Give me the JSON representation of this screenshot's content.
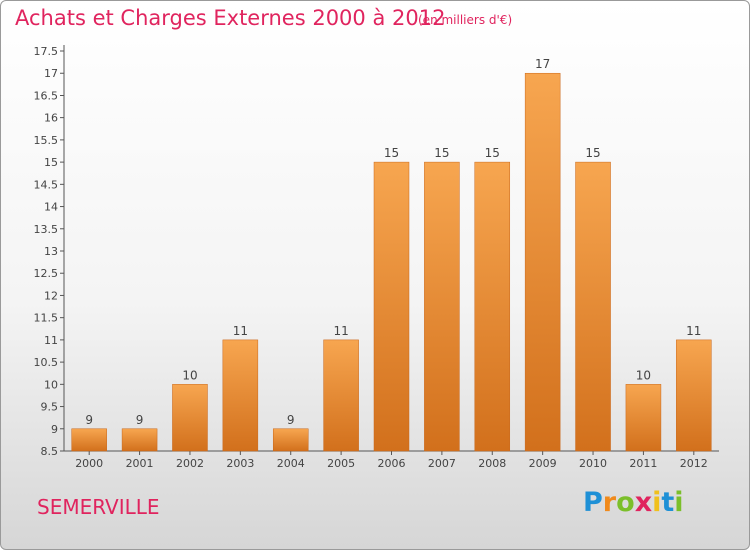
{
  "header": {
    "title": "Achats et Charges Externes 2000 à 2012",
    "subtitle": "(en milliers d'€)"
  },
  "footer": {
    "place": "SEMERVILLE",
    "brand": [
      "P",
      "r",
      "o",
      "x",
      "i",
      "t",
      "i"
    ],
    "brand_colors": [
      "#1e90d6",
      "#f08a1c",
      "#7bbf2a",
      "#e0245e",
      "#f0c01c",
      "#1e90d6",
      "#7bbf2a"
    ]
  },
  "chart_data": {
    "type": "bar",
    "title": "Achats et Charges Externes 2000 à 2012",
    "subtitle": "(en milliers d'€)",
    "categories": [
      "2000",
      "2001",
      "2002",
      "2003",
      "2004",
      "2005",
      "2006",
      "2007",
      "2008",
      "2009",
      "2010",
      "2011",
      "2012"
    ],
    "values": [
      9,
      9,
      10,
      11,
      9,
      11,
      15,
      15,
      15,
      17,
      15,
      10,
      11
    ],
    "ylim": [
      8.5,
      17.5
    ],
    "yticks": [
      "8.5",
      "9",
      "9.5",
      "10",
      "10.5",
      "11",
      "11.5",
      "12",
      "12.5",
      "13",
      "13.5",
      "14",
      "14.5",
      "15",
      "15.5",
      "16",
      "16.5",
      "17",
      "17.5"
    ],
    "grid": false,
    "bar_color_top": "#f7a650",
    "bar_color_bottom": "#d2701c",
    "text_color": "#e0245e"
  }
}
